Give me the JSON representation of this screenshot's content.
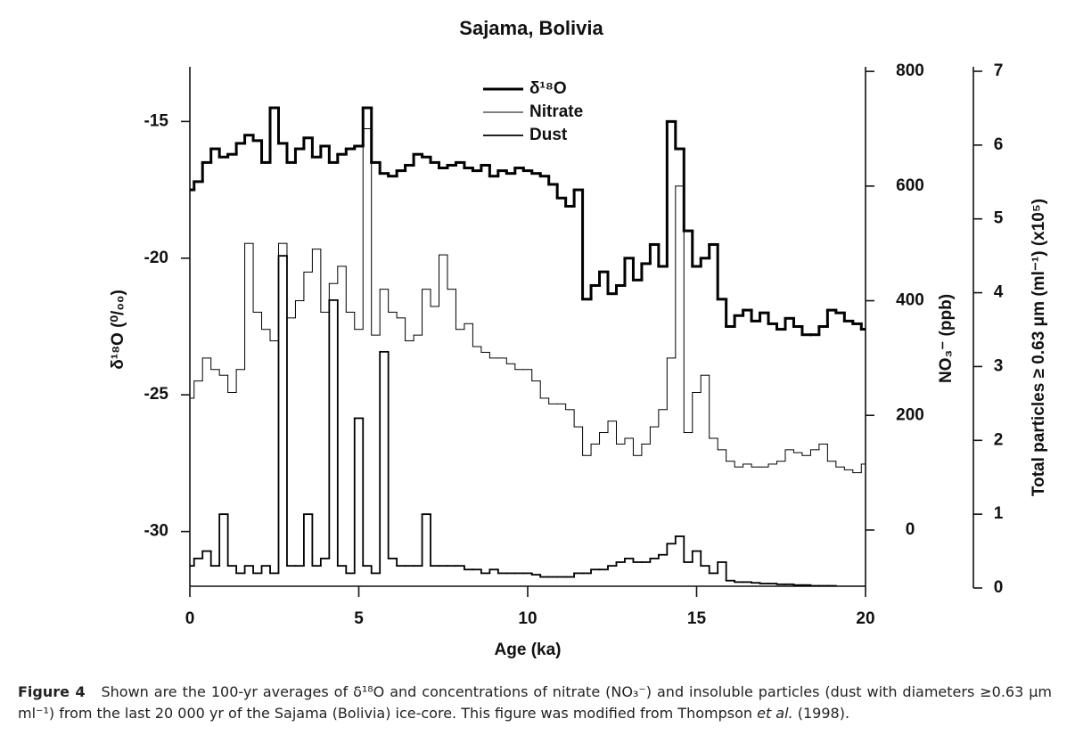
{
  "chart_data": {
    "type": "step-line",
    "title": "Sajama, Bolivia",
    "x_label": "Age (ka)",
    "y_label": "δ¹⁸O (⁰/₀₀)",
    "y2_label": "NO₃⁻ (ppb)",
    "y3_label": "Total particles ≥ 0.63 μm (ml⁻¹) (x10⁵)",
    "xlim": [
      0,
      20
    ],
    "xticks": [
      0,
      5,
      10,
      15,
      20
    ],
    "ylim": [
      -32,
      -13
    ],
    "yticks": [
      -15,
      -20,
      -25,
      -30
    ],
    "y2lim": [
      -98,
      808
    ],
    "y2ticks": [
      0,
      200,
      400,
      600,
      800
    ],
    "y3lim": [
      0,
      7
    ],
    "y3ticks": [
      0,
      1,
      2,
      3,
      4,
      5,
      6,
      7
    ],
    "legend": "top-center",
    "x": [
      0,
      0.25,
      0.5,
      0.75,
      1,
      1.25,
      1.5,
      1.75,
      2,
      2.25,
      2.5,
      2.75,
      3,
      3.25,
      3.5,
      3.75,
      4,
      4.25,
      4.5,
      4.75,
      5,
      5.25,
      5.5,
      5.75,
      6,
      6.25,
      6.5,
      6.75,
      7,
      7.25,
      7.5,
      7.75,
      8,
      8.25,
      8.5,
      8.75,
      9,
      9.25,
      9.5,
      9.75,
      10,
      10.25,
      10.5,
      10.75,
      11,
      11.25,
      11.5,
      11.75,
      12,
      12.25,
      12.5,
      12.75,
      13,
      13.25,
      13.5,
      13.75,
      14,
      14.25,
      14.5,
      14.75,
      15,
      15.25,
      15.5,
      15.75,
      16,
      16.25,
      16.5,
      16.75,
      17,
      17.25,
      17.5,
      17.75,
      18,
      18.25,
      18.5,
      18.75,
      19,
      19.25,
      19.5,
      19.75,
      20
    ],
    "series": [
      {
        "name": "δ¹⁸O",
        "color": "#000000",
        "width": 3,
        "axis": "y",
        "values": [
          -17.5,
          -17.2,
          -16.5,
          -16,
          -16.3,
          -16.2,
          -15.8,
          -15.5,
          -15.7,
          -16.5,
          -14.5,
          -15.8,
          -16.5,
          -16,
          -15.6,
          -16.3,
          -15.9,
          -16.5,
          -16.2,
          -16,
          -15.9,
          -14.5,
          -16.5,
          -16.9,
          -17,
          -16.8,
          -16.6,
          -16.2,
          -16.3,
          -16.5,
          -16.7,
          -16.6,
          -16.5,
          -16.7,
          -16.8,
          -16.6,
          -17,
          -16.8,
          -16.9,
          -16.7,
          -16.8,
          -16.9,
          -17,
          -17.3,
          -17.8,
          -18.1,
          -17.5,
          -21.5,
          -21,
          -20.5,
          -21.3,
          -21,
          -20,
          -20.8,
          -20.2,
          -19.5,
          -20.3,
          -15,
          -16,
          -19,
          -20.3,
          -20,
          -19.5,
          -21.5,
          -22.5,
          -22.1,
          -21.9,
          -22.3,
          -22,
          -22.4,
          -22.6,
          -22.2,
          -22.5,
          -22.8,
          -22.8,
          -22.5,
          -21.9,
          -22,
          -22.3,
          -22.4,
          -22.6
        ]
      },
      {
        "name": "Nitrate",
        "color": "#000000",
        "width": 1,
        "axis": "y2",
        "values": [
          230,
          260,
          300,
          280,
          270,
          240,
          280,
          500,
          380,
          350,
          330,
          500,
          370,
          400,
          450,
          490,
          380,
          430,
          460,
          380,
          350,
          700,
          340,
          420,
          380,
          370,
          330,
          340,
          420,
          390,
          480,
          420,
          350,
          360,
          320,
          310,
          300,
          300,
          290,
          280,
          280,
          260,
          230,
          220,
          220,
          210,
          180,
          130,
          150,
          170,
          190,
          150,
          160,
          130,
          150,
          180,
          210,
          300,
          600,
          170,
          240,
          270,
          160,
          140,
          120,
          110,
          115,
          110,
          110,
          115,
          120,
          140,
          135,
          130,
          140,
          150,
          120,
          110,
          105,
          100,
          115
        ]
      },
      {
        "name": "Dust",
        "color": "#000000",
        "width": 1.8,
        "axis": "y3",
        "values": [
          0.3,
          0.4,
          0.5,
          0.3,
          1,
          0.3,
          0.2,
          0.3,
          0.2,
          0.3,
          0.2,
          4.5,
          0.3,
          0.3,
          1,
          0.3,
          0.4,
          3.9,
          0.3,
          0.2,
          2.3,
          0.3,
          0.2,
          3.2,
          0.4,
          0.3,
          0.3,
          0.3,
          1,
          0.3,
          0.3,
          0.3,
          0.3,
          0.25,
          0.25,
          0.2,
          0.25,
          0.2,
          0.2,
          0.2,
          0.2,
          0.18,
          0.15,
          0.15,
          0.15,
          0.15,
          0.2,
          0.2,
          0.25,
          0.25,
          0.3,
          0.35,
          0.4,
          0.35,
          0.35,
          0.4,
          0.45,
          0.6,
          0.7,
          0.35,
          0.5,
          0.3,
          0.2,
          0.35,
          0.1,
          0.08,
          0.08,
          0.07,
          0.06,
          0.06,
          0.05,
          0.05,
          0.04,
          0.04,
          0.03,
          0.03,
          0.03,
          0.02,
          0.02,
          0.02,
          0.02
        ]
      }
    ],
    "caption_label": "Figure 4",
    "caption_text": "Shown are the 100-yr averages of δ¹⁸O and concentrations of nitrate (NO₃⁻) and insoluble particles (dust with diameters ≥0.63 μm ml⁻¹) from the last 20 000 yr of the Sajama (Bolivia) ice-core. This figure was modified from Thompson",
    "caption_italic": "et al.",
    "caption_end": "(1998)."
  }
}
